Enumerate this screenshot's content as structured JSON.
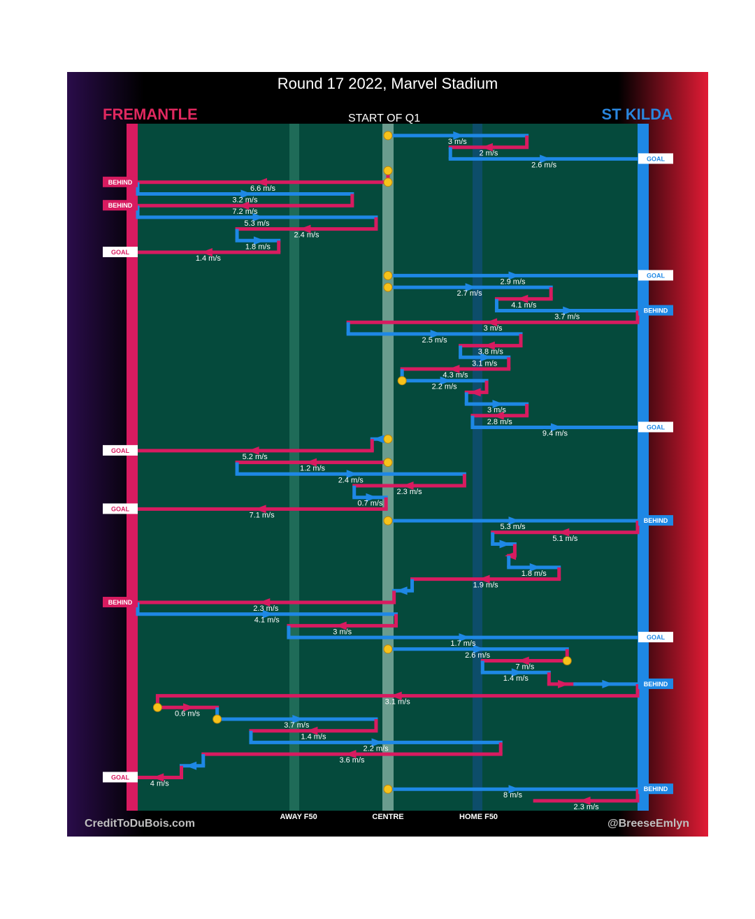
{
  "title": "Round 17 2022, Marvel Stadium",
  "teams": {
    "left": "FREMANTLE",
    "right": "ST KILDA"
  },
  "period_label": "START OF Q1",
  "credits": {
    "left": "CreditToDuBois.com",
    "right": "@BreeseEmlyn"
  },
  "colors": {
    "fremantle": "#d81b60",
    "stkilda": "#1e88e5",
    "field": "#054a3c",
    "ball": "#f7c21a"
  },
  "chart_data": {
    "type": "line",
    "title": "Round 17 2022, Marvel Stadium",
    "x_axis_labels": [
      "AWAY F50",
      "CENTRE",
      "HOME F50"
    ],
    "x_axis_label_positions": [
      -4.5,
      0,
      4.5
    ],
    "xlim": [
      -12.6,
      12.4
    ],
    "outcome_tags": [
      {
        "row": 2,
        "team": "stkilda",
        "label": "GOAL"
      },
      {
        "row": 4,
        "team": "fremantle",
        "label": "BEHIND"
      },
      {
        "row": 6,
        "team": "fremantle",
        "label": "BEHIND"
      },
      {
        "row": 10,
        "team": "fremantle",
        "label": "GOAL"
      },
      {
        "row": 12,
        "team": "stkilda",
        "label": "GOAL"
      },
      {
        "row": 15,
        "team": "stkilda",
        "label": "BEHIND"
      },
      {
        "row": 25,
        "team": "stkilda",
        "label": "GOAL"
      },
      {
        "row": 27,
        "team": "fremantle",
        "label": "GOAL"
      },
      {
        "row": 32,
        "team": "fremantle",
        "label": "GOAL"
      },
      {
        "row": 33,
        "team": "stkilda",
        "label": "BEHIND"
      },
      {
        "row": 40,
        "team": "fremantle",
        "label": "BEHIND"
      },
      {
        "row": 43,
        "team": "stkilda",
        "label": "GOAL"
      },
      {
        "row": 47,
        "team": "stkilda",
        "label": "BEHIND"
      },
      {
        "row": 55,
        "team": "fremantle",
        "label": "GOAL"
      },
      {
        "row": 56,
        "team": "stkilda",
        "label": "BEHIND"
      }
    ],
    "chains": [
      {
        "team": "stkilda",
        "rows": [
          0
        ],
        "from": 0,
        "to": 6.9,
        "speed": "3 m/s"
      },
      {
        "team": "fremantle",
        "rows": [
          1
        ],
        "from": 6.9,
        "to": 3.1,
        "speed": "2 m/s"
      },
      {
        "team": "stkilda",
        "rows": [
          2
        ],
        "from": 3.1,
        "to": 12.4,
        "speed": "2.6 m/s"
      },
      {
        "team": "fremantle",
        "rows": [
          3
        ],
        "from": 0,
        "to": 0,
        "speed": ""
      },
      {
        "team": "fremantle",
        "rows": [
          4
        ],
        "from": 0,
        "to": -12.6,
        "speed": "6.6 m/s"
      },
      {
        "team": "stkilda",
        "rows": [
          5
        ],
        "from": -12.6,
        "to": -1.8,
        "speed": "3.2 m/s"
      },
      {
        "team": "fremantle",
        "rows": [
          6
        ],
        "from": -1.8,
        "to": -12.6,
        "speed": "7.2 m/s"
      },
      {
        "team": "stkilda",
        "rows": [
          7
        ],
        "from": -12.6,
        "to": -0.6,
        "speed": "5.3 m/s"
      },
      {
        "team": "fremantle",
        "rows": [
          8
        ],
        "from": -0.6,
        "to": -7.6,
        "speed": "2.4 m/s"
      },
      {
        "team": "stkilda",
        "rows": [
          9
        ],
        "from": -7.6,
        "to": -5.5,
        "speed": "1.8 m/s"
      },
      {
        "team": "fremantle",
        "rows": [
          10
        ],
        "from": -5.5,
        "to": -12.6,
        "speed": "1.4 m/s"
      },
      {
        "team": "stkilda",
        "rows": [
          12
        ],
        "from": 0,
        "to": 12.4,
        "speed": "2.9 m/s"
      },
      {
        "team": "stkilda",
        "rows": [
          13
        ],
        "from": 0,
        "to": 8.1,
        "speed": "2.7 m/s"
      },
      {
        "team": "fremantle",
        "rows": [
          14
        ],
        "from": 8.1,
        "to": 5.4,
        "speed": "4.1 m/s"
      },
      {
        "team": "stkilda",
        "rows": [
          15
        ],
        "from": 5.4,
        "to": 12.4,
        "speed": "3.7 m/s"
      },
      {
        "team": "fremantle",
        "rows": [
          16
        ],
        "from": 12.4,
        "to": -2.0,
        "speed": "3 m/s"
      },
      {
        "team": "stkilda",
        "rows": [
          17
        ],
        "from": -2.0,
        "to": 6.6,
        "speed": "2.5 m/s"
      },
      {
        "team": "fremantle",
        "rows": [
          18
        ],
        "from": 6.6,
        "to": 3.6,
        "speed": "3.8 m/s"
      },
      {
        "team": "stkilda",
        "rows": [
          19
        ],
        "from": 3.6,
        "to": 6.0,
        "speed": "3.1 m/s"
      },
      {
        "team": "fremantle",
        "rows": [
          20
        ],
        "from": 6.0,
        "to": 0.7,
        "speed": "4.3 m/s"
      },
      {
        "team": "stkilda",
        "rows": [
          21
        ],
        "from": 0.7,
        "to": 4.9,
        "speed": "2.2 m/s"
      },
      {
        "team": "fremantle",
        "rows": [
          22
        ],
        "from": 4.9,
        "to": 3.9,
        "speed": ""
      },
      {
        "team": "stkilda",
        "rows": [
          23
        ],
        "from": 3.9,
        "to": 6.9,
        "speed": "3 m/s"
      },
      {
        "team": "fremantle",
        "rows": [
          24
        ],
        "from": 6.9,
        "to": 4.2,
        "speed": "2.8 m/s"
      },
      {
        "team": "stkilda",
        "rows": [
          25
        ],
        "from": 4.2,
        "to": 12.4,
        "speed": "9.4 m/s"
      },
      {
        "team": "stkilda",
        "rows": [
          26
        ],
        "from": 0,
        "to": -0.8,
        "speed": ""
      },
      {
        "team": "fremantle",
        "rows": [
          27
        ],
        "from": -0.8,
        "to": -12.6,
        "speed": "5.2 m/s"
      },
      {
        "team": "fremantle",
        "rows": [
          28
        ],
        "from": 0,
        "to": -7.6,
        "speed": "1.2 m/s"
      },
      {
        "team": "stkilda",
        "rows": [
          29
        ],
        "from": -7.6,
        "to": 3.8,
        "speed": "2.4 m/s"
      },
      {
        "team": "fremantle",
        "rows": [
          30
        ],
        "from": 3.8,
        "to": -1.7,
        "speed": "2.3 m/s"
      },
      {
        "team": "stkilda",
        "rows": [
          31
        ],
        "from": -1.7,
        "to": -0.1,
        "speed": "0.7 m/s"
      },
      {
        "team": "fremantle",
        "rows": [
          32
        ],
        "from": -0.1,
        "to": -12.6,
        "speed": "7.1 m/s"
      },
      {
        "team": "stkilda",
        "rows": [
          33
        ],
        "from": 0,
        "to": 12.4,
        "speed": "5.3 m/s"
      },
      {
        "team": "fremantle",
        "rows": [
          34
        ],
        "from": 12.4,
        "to": 5.2,
        "speed": "5.1 m/s"
      },
      {
        "team": "stkilda",
        "rows": [
          35
        ],
        "from": 5.2,
        "to": 6.3,
        "speed": ""
      },
      {
        "team": "fremantle",
        "rows": [
          36
        ],
        "from": 6.3,
        "to": 6.0,
        "speed": ""
      },
      {
        "team": "stkilda",
        "rows": [
          37
        ],
        "from": 6.0,
        "to": 8.5,
        "speed": "1.8 m/s"
      },
      {
        "team": "fremantle",
        "rows": [
          38
        ],
        "from": 8.5,
        "to": 1.2,
        "speed": "1.9 m/s"
      },
      {
        "team": "stkilda",
        "rows": [
          39
        ],
        "from": 1.2,
        "to": 0.3,
        "speed": ""
      },
      {
        "team": "fremantle",
        "rows": [
          40
        ],
        "from": 0.3,
        "to": -12.6,
        "speed": "2.3 m/s"
      },
      {
        "team": "stkilda",
        "rows": [
          41
        ],
        "from": -12.6,
        "to": 0.4,
        "speed": "4.1 m/s"
      },
      {
        "team": "fremantle",
        "rows": [
          42
        ],
        "from": 0.4,
        "to": -5.0,
        "speed": "3 m/s"
      },
      {
        "team": "stkilda",
        "rows": [
          43
        ],
        "from": -5.0,
        "to": 12.4,
        "speed": "1.7 m/s"
      },
      {
        "team": "stkilda",
        "rows": [
          44
        ],
        "from": 0,
        "to": 8.9,
        "speed": "2.6 m/s"
      },
      {
        "team": "fremantle",
        "rows": [
          45
        ],
        "from": 8.9,
        "to": 4.7,
        "speed": "7 m/s"
      },
      {
        "team": "stkilda",
        "rows": [
          46
        ],
        "from": 4.7,
        "to": 8.0,
        "speed": "1.4 m/s"
      },
      {
        "team": "fremantle",
        "rows": [
          47
        ],
        "from": 8.0,
        "to": 9.3,
        "speed": ""
      },
      {
        "team": "stkilda",
        "rows": [
          47
        ],
        "from": 9.3,
        "to": 12.4,
        "speed": ""
      },
      {
        "team": "fremantle",
        "rows": [
          48
        ],
        "from": 12.4,
        "to": -11.6,
        "speed": "3.1 m/s"
      },
      {
        "team": "fremantle",
        "rows": [
          49
        ],
        "from": -11.6,
        "to": -8.6,
        "speed": "0.6 m/s"
      },
      {
        "team": "stkilda",
        "rows": [
          50
        ],
        "from": -8.6,
        "to": -0.6,
        "speed": "3.7 m/s"
      },
      {
        "team": "fremantle",
        "rows": [
          51
        ],
        "from": -0.6,
        "to": -6.9,
        "speed": "1.4 m/s"
      },
      {
        "team": "stkilda",
        "rows": [
          52
        ],
        "from": -6.9,
        "to": 5.6,
        "speed": "2.2 m/s"
      },
      {
        "team": "fremantle",
        "rows": [
          53
        ],
        "from": 5.6,
        "to": -9.3,
        "speed": "3.6 m/s"
      },
      {
        "team": "stkilda",
        "rows": [
          54
        ],
        "from": -9.3,
        "to": -10.4,
        "speed": ""
      },
      {
        "team": "fremantle",
        "rows": [
          55
        ],
        "from": -10.4,
        "to": -12.6,
        "speed": "4 m/s"
      },
      {
        "team": "stkilda",
        "rows": [
          56
        ],
        "from": 0,
        "to": 12.4,
        "speed": "8 m/s"
      },
      {
        "team": "fremantle",
        "rows": [
          57
        ],
        "from": 12.4,
        "to": 7.3,
        "speed": "2.3 m/s"
      }
    ]
  }
}
